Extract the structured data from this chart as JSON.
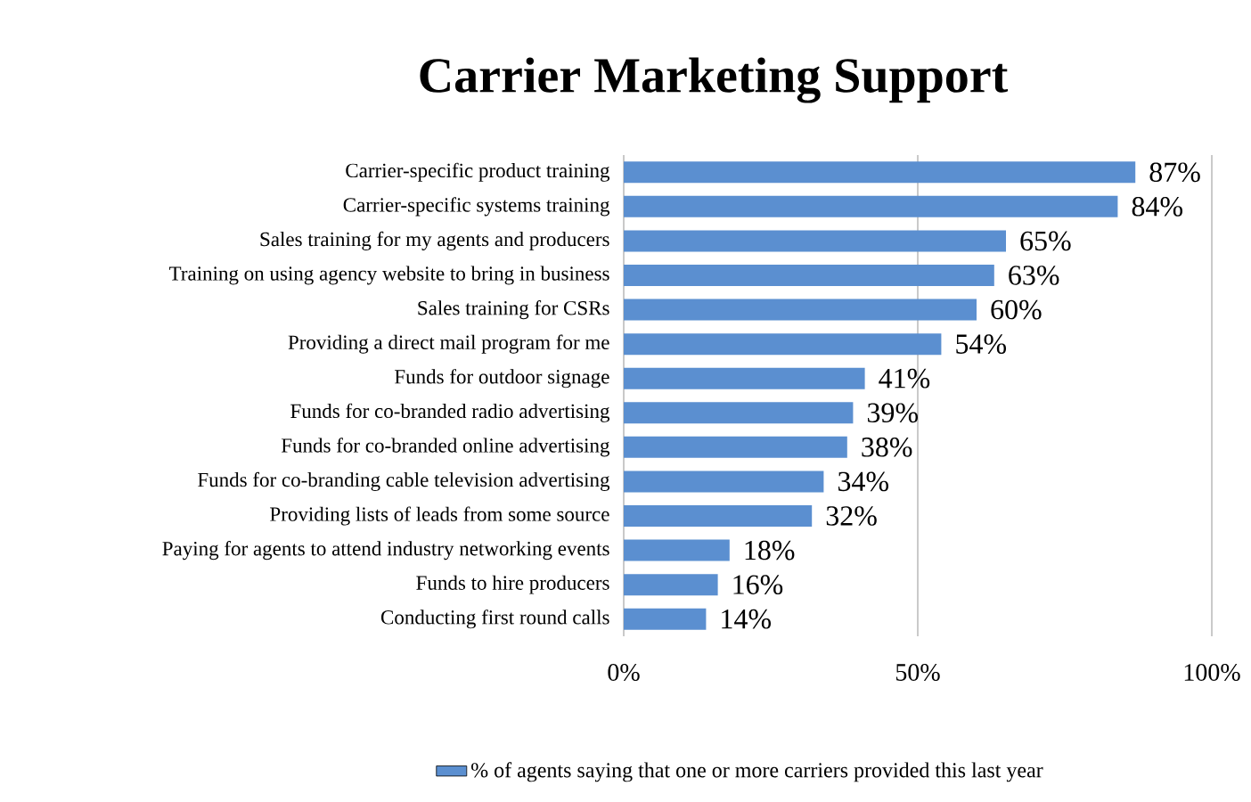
{
  "chart_data": {
    "type": "bar",
    "orientation": "horizontal",
    "title": "Carrier Marketing Support",
    "categories": [
      "Carrier-specific product training",
      "Carrier-specific systems training",
      "Sales training for my agents and producers",
      "Training on using agency website to bring in business",
      "Sales training for CSRs",
      "Providing a direct mail program for me",
      "Funds for outdoor signage",
      "Funds for co-branded radio advertising",
      "Funds for co-branded online advertising",
      "Funds for co-branding cable television advertising",
      "Providing lists of leads from some source",
      "Paying for agents to attend industry networking events",
      "Funds to hire producers",
      "Conducting first round calls"
    ],
    "series": [
      {
        "name": "% of agents saying that one or more carriers provided this last year",
        "color": "#5b8fd0",
        "values": [
          87,
          84,
          65,
          63,
          60,
          54,
          41,
          39,
          38,
          34,
          32,
          18,
          16,
          14
        ],
        "value_labels": [
          "87%",
          "84%",
          "65%",
          "63%",
          "60%",
          "54%",
          "41%",
          "39%",
          "38%",
          "34%",
          "32%",
          "18%",
          "16%",
          "14%"
        ]
      }
    ],
    "xlim": [
      0,
      100
    ],
    "xticks": [
      {
        "value": 0,
        "label": "0%"
      },
      {
        "value": 50,
        "label": "50%"
      },
      {
        "value": 100,
        "label": "100%"
      }
    ],
    "grid": "x",
    "legend": "bottom"
  }
}
